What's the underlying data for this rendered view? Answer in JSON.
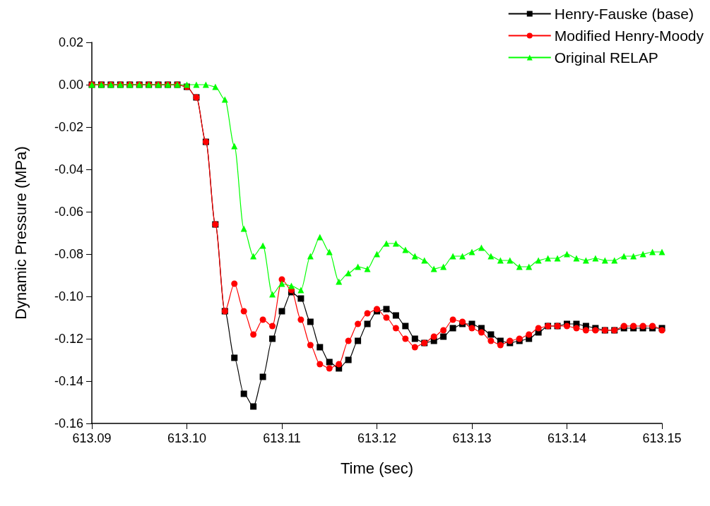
{
  "chart_data": {
    "type": "line",
    "xlabel": "Time (sec)",
    "ylabel": "Dynamic Pressure (MPa)",
    "x": [
      613.09,
      613.091,
      613.092,
      613.093,
      613.094,
      613.095,
      613.096,
      613.097,
      613.098,
      613.099,
      613.1,
      613.101,
      613.102,
      613.103,
      613.104,
      613.105,
      613.106,
      613.107,
      613.108,
      613.109,
      613.11,
      613.111,
      613.112,
      613.113,
      613.114,
      613.115,
      613.116,
      613.117,
      613.118,
      613.119,
      613.12,
      613.121,
      613.122,
      613.123,
      613.124,
      613.125,
      613.126,
      613.127,
      613.128,
      613.129,
      613.13,
      613.131,
      613.132,
      613.133,
      613.134,
      613.135,
      613.136,
      613.137,
      613.138,
      613.139,
      613.14,
      613.141,
      613.142,
      613.143,
      613.144,
      613.145,
      613.146,
      613.147,
      613.148,
      613.149,
      613.15
    ],
    "series": [
      {
        "name": "Henry-Fauske (base)",
        "color": "#000000",
        "marker": "square",
        "values": [
          0,
          0,
          0,
          0,
          0,
          0,
          0,
          0,
          0,
          0,
          -0.001,
          -0.006,
          -0.027,
          -0.066,
          -0.107,
          -0.129,
          -0.146,
          -0.152,
          -0.138,
          -0.12,
          -0.107,
          -0.098,
          -0.101,
          -0.112,
          -0.124,
          -0.131,
          -0.134,
          -0.13,
          -0.121,
          -0.113,
          -0.107,
          -0.106,
          -0.109,
          -0.114,
          -0.12,
          -0.122,
          -0.121,
          -0.119,
          -0.115,
          -0.113,
          -0.113,
          -0.115,
          -0.118,
          -0.121,
          -0.122,
          -0.121,
          -0.12,
          -0.117,
          -0.114,
          -0.114,
          -0.113,
          -0.113,
          -0.114,
          -0.115,
          -0.116,
          -0.116,
          -0.115,
          -0.115,
          -0.115,
          -0.115,
          -0.115
        ]
      },
      {
        "name": "Modified Henry-Moody",
        "color": "#ff0000",
        "marker": "circle",
        "values": [
          0,
          0,
          0,
          0,
          0,
          0,
          0,
          0,
          0,
          0,
          -0.001,
          -0.006,
          -0.027,
          -0.066,
          -0.107,
          -0.094,
          -0.107,
          -0.118,
          -0.111,
          -0.114,
          -0.092,
          -0.097,
          -0.111,
          -0.123,
          -0.132,
          -0.134,
          -0.132,
          -0.121,
          -0.113,
          -0.108,
          -0.106,
          -0.11,
          -0.115,
          -0.12,
          -0.124,
          -0.122,
          -0.119,
          -0.116,
          -0.111,
          -0.112,
          -0.115,
          -0.117,
          -0.121,
          -0.123,
          -0.121,
          -0.12,
          -0.118,
          -0.115,
          -0.114,
          -0.114,
          -0.114,
          -0.115,
          -0.116,
          -0.116,
          -0.116,
          -0.116,
          -0.114,
          -0.114,
          -0.114,
          -0.114,
          -0.116
        ]
      },
      {
        "name": "Original RELAP",
        "color": "#00ff00",
        "marker": "triangle",
        "values": [
          0,
          0,
          0,
          0,
          0,
          0,
          0,
          0,
          0,
          0,
          0,
          0,
          0,
          -0.001,
          -0.007,
          -0.029,
          -0.068,
          -0.081,
          -0.076,
          -0.099,
          -0.094,
          -0.095,
          -0.097,
          -0.081,
          -0.072,
          -0.079,
          -0.093,
          -0.089,
          -0.086,
          -0.087,
          -0.08,
          -0.075,
          -0.075,
          -0.078,
          -0.081,
          -0.083,
          -0.087,
          -0.086,
          -0.081,
          -0.081,
          -0.079,
          -0.077,
          -0.081,
          -0.083,
          -0.083,
          -0.086,
          -0.086,
          -0.083,
          -0.082,
          -0.082,
          -0.08,
          -0.082,
          -0.083,
          -0.082,
          -0.083,
          -0.083,
          -0.081,
          -0.081,
          -0.08,
          -0.079,
          -0.079
        ]
      }
    ],
    "xlim": [
      613.09,
      613.15
    ],
    "xticks": [
      {
        "value": 613.09,
        "label": "613.09"
      },
      {
        "value": 613.1,
        "label": "613.10"
      },
      {
        "value": 613.11,
        "label": "613.11"
      },
      {
        "value": 613.12,
        "label": "613.12"
      },
      {
        "value": 613.13,
        "label": "613.13"
      },
      {
        "value": 613.14,
        "label": "613.14"
      },
      {
        "value": 613.15,
        "label": "613.15"
      }
    ],
    "ylim": [
      -0.16,
      0.02
    ],
    "yticks": [
      {
        "value": -0.16,
        "label": "-0.16"
      },
      {
        "value": -0.14,
        "label": "-0.14"
      },
      {
        "value": -0.12,
        "label": "-0.12"
      },
      {
        "value": -0.1,
        "label": "-0.10"
      },
      {
        "value": -0.08,
        "label": "-0.08"
      },
      {
        "value": -0.06,
        "label": "-0.06"
      },
      {
        "value": -0.04,
        "label": "-0.04"
      },
      {
        "value": -0.02,
        "label": "-0.02"
      },
      {
        "value": 0,
        "label": "0.00"
      },
      {
        "value": 0.02,
        "label": "0.02"
      }
    ],
    "grid": false,
    "legend": "top right",
    "line_style": "solid"
  }
}
